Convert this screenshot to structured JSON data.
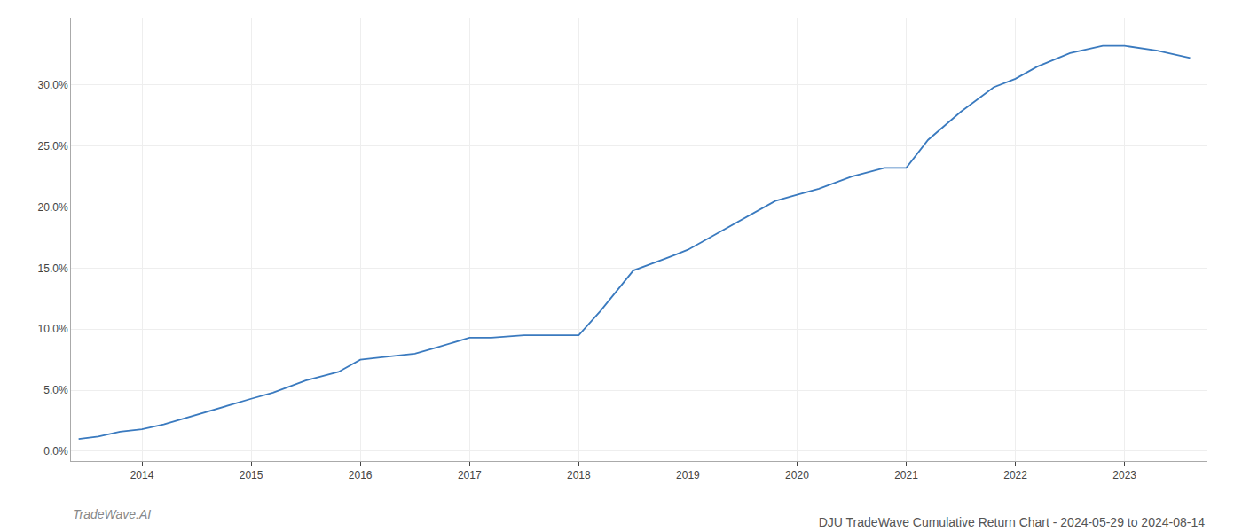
{
  "chart_data": {
    "type": "line",
    "title": "DJU TradeWave Cumulative Return Chart - 2024-05-29 to 2024-08-14",
    "annotations": [
      {
        "text": "TradeWave.AI"
      }
    ],
    "color": "#3a7abf",
    "x": [
      2013.42,
      2013.6,
      2013.8,
      2014.0,
      2014.2,
      2014.5,
      2014.8,
      2015.0,
      2015.2,
      2015.5,
      2015.8,
      2016.0,
      2016.2,
      2016.5,
      2016.7,
      2017.0,
      2017.2,
      2017.5,
      2017.8,
      2018.0,
      2018.2,
      2018.5,
      2018.8,
      2019.0,
      2019.2,
      2019.5,
      2019.8,
      2020.0,
      2020.2,
      2020.5,
      2020.8,
      2021.0,
      2021.2,
      2021.5,
      2021.8,
      2022.0,
      2022.2,
      2022.5,
      2022.8,
      2023.0,
      2023.3,
      2023.6
    ],
    "values": [
      0.01,
      0.012,
      0.016,
      0.018,
      0.022,
      0.03,
      0.038,
      0.043,
      0.048,
      0.058,
      0.065,
      0.075,
      0.077,
      0.08,
      0.085,
      0.093,
      0.093,
      0.095,
      0.095,
      0.095,
      0.115,
      0.148,
      0.158,
      0.165,
      0.175,
      0.19,
      0.205,
      0.21,
      0.215,
      0.225,
      0.232,
      0.232,
      0.255,
      0.278,
      0.298,
      0.305,
      0.315,
      0.326,
      0.332,
      0.332,
      0.328,
      0.322
    ],
    "xlim": [
      2013.35,
      2023.75
    ],
    "ylim": [
      -0.008,
      0.355
    ],
    "xticks": [
      2014,
      2015,
      2016,
      2017,
      2018,
      2019,
      2020,
      2021,
      2022,
      2023
    ],
    "yticks": [
      {
        "value": 0.0,
        "label": "0.0%"
      },
      {
        "value": 0.05,
        "label": "5.0%"
      },
      {
        "value": 0.1,
        "label": "10.0%"
      },
      {
        "value": 0.15,
        "label": "15.0%"
      },
      {
        "value": 0.2,
        "label": "20.0%"
      },
      {
        "value": 0.25,
        "label": "25.0%"
      },
      {
        "value": 0.3,
        "label": "30.0%"
      }
    ],
    "grid": true
  }
}
